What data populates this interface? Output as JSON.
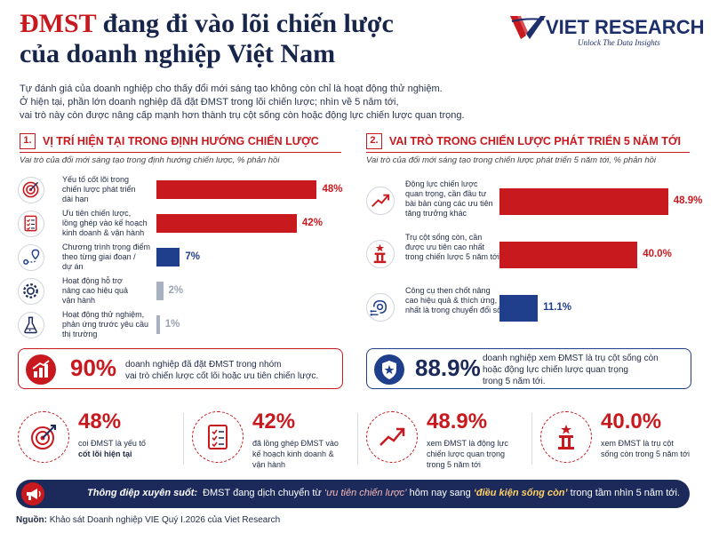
{
  "header": {
    "title_highlight": "ĐMST",
    "title_line1_rest": " đang đi vào lõi chiến lược",
    "title_line2": "của doanh nghiệp Việt Nam",
    "intro": [
      "Tự đánh giá của doanh nghiệp cho thấy đổi mới sáng tạo không còn chỉ là hoạt động thử nghiệm.",
      "Ở hiện tại, phần lớn doanh nghiệp đã đặt ĐMST trong lõi chiến lược; nhìn về 5 năm tới,",
      "vai trò này còn được nâng cấp mạnh hơn thành trụ cột sống còn hoặc động lực chiến lược quan trọng."
    ]
  },
  "logo": {
    "name": "VIET RESEARCH",
    "tagline": "Unlock The Data Insights"
  },
  "colors": {
    "red": "#c8191f",
    "navy": "#1b2a5a",
    "blue": "#1f3f8c",
    "gray": "#a7b1c0"
  },
  "section1": {
    "num": "1.",
    "title": "VỊ TRÍ HIỆN TẠI TRONG ĐỊNH HƯỚNG CHIẾN LƯỢC",
    "subtitle": "Vai trò của đổi mới sáng tạo trong định hướng chiến lược, % phản hồi",
    "callout": {
      "value": "90%",
      "text": [
        "doanh nghiệp đã đặt ĐMST trong nhóm",
        "vai trò chiến lược cốt lõi hoặc ưu tiên chiến lược."
      ]
    }
  },
  "section2": {
    "num": "2.",
    "title": "VAI TRÒ TRONG CHIẾN LƯỢC PHÁT TRIỂN 5 NĂM TỚI",
    "subtitle": "Vai trò của đổi mới sáng tạo trong chiến lược phát triển 5 năm tới, % phản hồi",
    "callout": {
      "value": "88.9%",
      "text": [
        "doanh nghiệp xem ĐMST là trụ cột sống còn",
        "hoặc động lực chiến lược quan trọng",
        "trong 5 năm tới."
      ]
    }
  },
  "chart_data": [
    {
      "type": "bar",
      "orientation": "horizontal",
      "unit": "%",
      "categories": [
        [
          "Yếu tố cốt lõi trong",
          "chiến lược phát triển",
          "dài hạn"
        ],
        [
          "Ưu tiên chiến lược,",
          "lồng ghép vào kế hoạch",
          "kinh doanh & vận hành"
        ],
        [
          "Chương trình trọng điểm",
          "theo từng giai đoạn /",
          "dự án"
        ],
        [
          "Hoạt động hỗ trợ",
          "nâng cao hiệu quả",
          "vận hành"
        ],
        [
          "Hoạt động thử nghiệm,",
          "phản ứng trước yêu cầu",
          "thị trường"
        ]
      ],
      "values": [
        48,
        42,
        7,
        2,
        1
      ],
      "value_labels": [
        "48%",
        "42%",
        "7%",
        "2%",
        "1%"
      ],
      "bar_colors": [
        "#c8191f",
        "#c8191f",
        "#1f3f8c",
        "#a7b1c0",
        "#a7b1c0"
      ],
      "icons": [
        "target-icon",
        "checklist-icon",
        "route-icon",
        "gear-icon",
        "flask-icon"
      ],
      "xlim": [
        0,
        50
      ]
    },
    {
      "type": "bar",
      "orientation": "horizontal",
      "unit": "%",
      "categories": [
        [
          "Động lực chiến lược",
          "quan trọng, cần đầu tư",
          "bài bản cùng các ưu tiên",
          "tăng trưởng khác"
        ],
        [
          "Trụ cột sống còn, cần",
          "được ưu tiên cao nhất",
          "trong chiến lược 5 năm tới"
        ],
        [
          "Công cụ then chốt nâng",
          "cao hiệu quả & thích ứng,",
          "nhất là trong chuyển đổi số"
        ]
      ],
      "values": [
        48.9,
        40.0,
        11.1
      ],
      "value_labels": [
        "48.9%",
        "40.0%",
        "11.1%"
      ],
      "bar_colors": [
        "#c8191f",
        "#c8191f",
        "#1f3f8c"
      ],
      "icons": [
        "trend-up-icon",
        "pillar-icon",
        "circuit-icon"
      ],
      "xlim": [
        0,
        50
      ]
    }
  ],
  "cards": [
    {
      "value": "48%",
      "text": [
        "coi ĐMST là yếu tố",
        "cốt lõi hiện tại"
      ],
      "icon": "target-icon"
    },
    {
      "value": "42%",
      "text": [
        "đã lồng ghép ĐMST vào",
        "kế hoạch kinh doanh &",
        "vận hành"
      ],
      "icon": "checklist-icon"
    },
    {
      "value": "48.9%",
      "text": [
        "xem ĐMST là động lực",
        "chiến lược quan trọng",
        "trong 5 năm tới"
      ],
      "icon": "trend-up-icon"
    },
    {
      "value": "40.0%",
      "text": [
        "xem ĐMST là trụ cột",
        "sống còn trong 5 năm tới"
      ],
      "icon": "pillar-icon"
    }
  ],
  "banner": {
    "label": "Thông điệp xuyên suốt:",
    "text_before": "ĐMST đang dịch chuyển từ ",
    "quote1": "‘ưu tiên chiến lược’",
    "text_middle": " hôm nay sang ",
    "quote2": "‘điều kiện sống còn’",
    "text_after": " trong tầm nhìn 5 năm tới."
  },
  "source": {
    "label": "Nguồn:",
    "text": " Khảo sát Doanh nghiệp VIE Quý I.2026 của Viet Research"
  }
}
